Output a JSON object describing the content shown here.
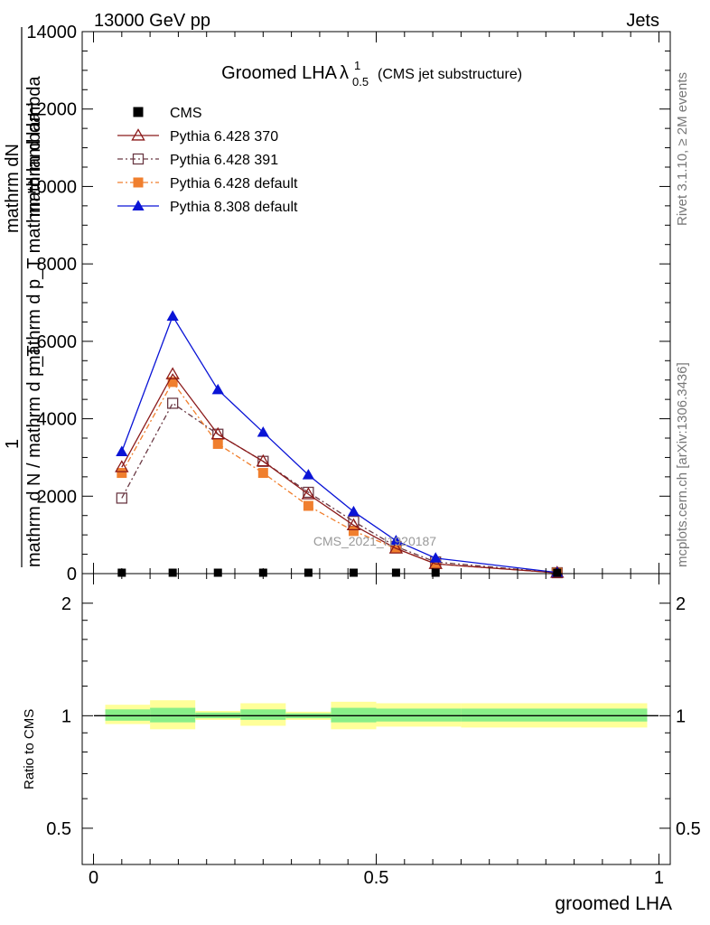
{
  "header": {
    "left": "13000 GeV pp",
    "right": "Jets"
  },
  "side_labels": {
    "rivet": "Rivet 3.1.10, ≥ 2M events",
    "mcplots": "mcplots.cern.ch [arXiv:1306.3436]"
  },
  "watermark": "CMS_2021_I1920187",
  "main_plot": {
    "title_main": "Groomed LHA",
    "title_lambda": "λ",
    "title_sup": "1",
    "title_sub": "0.5",
    "title_paren": "(CMS jet substructure)",
    "ylabel_top": "mathrm dN",
    "ylabel_top2": "mathrm d lambda",
    "ylabel_one": "1",
    "ylabel_mid": "mathrm d p_T mathrm d lambda",
    "ylabel_bot": "mathrm d N / mathrm d p_T",
    "yticks": [
      "0",
      "2000",
      "4000",
      "6000",
      "8000",
      "10000",
      "12000",
      "14000"
    ]
  },
  "ratio_plot": {
    "ylabel": "Ratio to CMS",
    "yticks": [
      "0.5",
      "1",
      "2"
    ],
    "xticks": [
      "0",
      "0.5",
      "1"
    ],
    "xlabel": "groomed LHA"
  },
  "legend": [
    {
      "name": "CMS",
      "color": "#000000",
      "marker": "square-filled",
      "line": "none"
    },
    {
      "name": "Pythia 6.428 370",
      "color": "#8b1a1a",
      "marker": "triangle-open",
      "line": "solid"
    },
    {
      "name": "Pythia 6.428 391",
      "color": "#6b3a45",
      "marker": "square-open",
      "line": "dashdot"
    },
    {
      "name": "Pythia 6.428 default",
      "color": "#f07f2e",
      "marker": "square-filled",
      "line": "dashdot"
    },
    {
      "name": "Pythia 8.308 default",
      "color": "#0a14d6",
      "marker": "triangle-filled",
      "line": "solid"
    }
  ],
  "chart_data": {
    "type": "line",
    "xlim": [
      -0.02,
      1.02
    ],
    "ylim": [
      0,
      14000
    ],
    "ratio_ylim_log": [
      0.4,
      2.4
    ],
    "x": [
      0.05,
      0.14,
      0.22,
      0.3,
      0.38,
      0.46,
      0.535,
      0.605,
      0.82
    ],
    "series": [
      {
        "name": "CMS",
        "values": [
          0,
          0,
          0,
          0,
          0,
          0,
          0,
          0,
          0
        ]
      },
      {
        "name": "Pythia 6.428 370",
        "values": [
          2750,
          5150,
          3600,
          2900,
          2050,
          1250,
          650,
          250,
          20
        ]
      },
      {
        "name": "Pythia 6.428 391",
        "values": [
          1950,
          4400,
          3600,
          2900,
          2100,
          1350,
          700,
          300,
          20
        ]
      },
      {
        "name": "Pythia 6.428 default",
        "values": [
          2600,
          4950,
          3350,
          2600,
          1750,
          1100,
          650,
          250,
          20
        ]
      },
      {
        "name": "Pythia 8.308 default",
        "values": [
          3150,
          6650,
          4750,
          3650,
          2550,
          1600,
          850,
          400,
          30
        ]
      }
    ],
    "ratio_bands": [
      {
        "x0": 0.0,
        "x1": 0.1,
        "inner": [
          0.97,
          1.04
        ],
        "outer": [
          0.95,
          1.07
        ]
      },
      {
        "x0": 0.1,
        "x1": 0.18,
        "inner": [
          0.96,
          1.05
        ],
        "outer": [
          0.92,
          1.1
        ]
      },
      {
        "x0": 0.18,
        "x1": 0.26,
        "inner": [
          0.985,
          1.02
        ],
        "outer": [
          0.975,
          1.03
        ]
      },
      {
        "x0": 0.26,
        "x1": 0.34,
        "inner": [
          0.975,
          1.04
        ],
        "outer": [
          0.94,
          1.08
        ]
      },
      {
        "x0": 0.34,
        "x1": 0.42,
        "inner": [
          0.985,
          1.015
        ],
        "outer": [
          0.975,
          1.025
        ]
      },
      {
        "x0": 0.42,
        "x1": 0.5,
        "inner": [
          0.96,
          1.05
        ],
        "outer": [
          0.92,
          1.09
        ]
      },
      {
        "x0": 0.5,
        "x1": 0.65,
        "inner": [
          0.965,
          1.045
        ],
        "outer": [
          0.935,
          1.08
        ]
      },
      {
        "x0": 0.65,
        "x1": 1.0,
        "inner": [
          0.965,
          1.045
        ],
        "outer": [
          0.93,
          1.08
        ]
      }
    ]
  }
}
